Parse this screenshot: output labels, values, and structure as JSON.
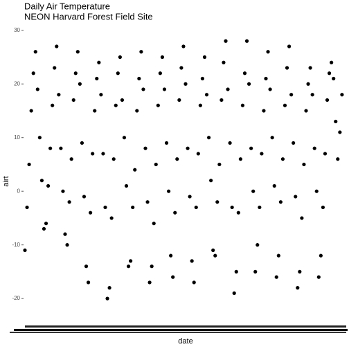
{
  "chart_data": {
    "type": "scatter",
    "title": "Daily Air Temperature",
    "subtitle": "NEON Harvard Forest Field Site",
    "x_label": "date",
    "y_label": "airt",
    "color": "#000000",
    "x": [
      0,
      0.1,
      0.2,
      0.3,
      0.4,
      0.5,
      0.6,
      0.7,
      0.8,
      0.9,
      1,
      1.1,
      1.2,
      1.3,
      1.4,
      1.5,
      1.6,
      1.7,
      1.8,
      1.9,
      2,
      2.1,
      2.2,
      2.3,
      2.4,
      2.5,
      2.6,
      2.7,
      2.8,
      2.9,
      3,
      3.1,
      3.2,
      3.3,
      3.4,
      3.5,
      3.6,
      3.7,
      3.8,
      3.9,
      4,
      4.1,
      4.2,
      4.3,
      4.4,
      4.5,
      4.6,
      4.7,
      4.8,
      4.9,
      5,
      5.1,
      5.2,
      5.3,
      5.4,
      5.5,
      5.6,
      5.7,
      5.8,
      5.9,
      6,
      6.1,
      6.2,
      6.3,
      6.4,
      6.5,
      6.6,
      6.7,
      6.8,
      6.9,
      7,
      7.1,
      7.2,
      7.3,
      7.4,
      7.5,
      7.6,
      7.7,
      7.8,
      7.9,
      8,
      8.1,
      8.2,
      8.3,
      8.4,
      8.5,
      8.6,
      8.7,
      8.8,
      8.9,
      9,
      9.1,
      9.2,
      9.3,
      9.4,
      9.5,
      9.6,
      9.7,
      9.8,
      9.9,
      10,
      10.1,
      10.2,
      10.3,
      10.4,
      10.5,
      10.6,
      10.7,
      10.8,
      10.9,
      11,
      11.1,
      11.2,
      11.3,
      11.4,
      11.5,
      11.6,
      11.7,
      11.8,
      11.9,
      12,
      12.1,
      12.2,
      12.3,
      12.4,
      12.5,
      12.6,
      12.7,
      12.8,
      12.9,
      13,
      13.1,
      13.2,
      13.3,
      13.4,
      13.5,
      13.6,
      13.7,
      13.8,
      13.9,
      14,
      14.1,
      14.2,
      14.3,
      14.4,
      14.5,
      14.6,
      14.7,
      14.8,
      14.9,
      15
    ],
    "values": [
      -11,
      -3,
      5,
      15,
      22,
      26,
      19,
      10,
      2,
      -7,
      -6,
      1,
      8,
      16,
      23,
      27,
      18,
      8,
      0,
      -8,
      -10,
      -2,
      6,
      17,
      22,
      26,
      20,
      9,
      -1,
      -14,
      -17,
      -4,
      7,
      15,
      21,
      24,
      18,
      7,
      -3,
      -20,
      -18,
      -5,
      6,
      16,
      22,
      25,
      17,
      10,
      1,
      -14,
      -13,
      -3,
      4,
      15,
      21,
      26,
      19,
      8,
      -2,
      -17,
      -14,
      -6,
      5,
      16,
      22,
      25,
      19,
      9,
      0,
      -12,
      -16,
      -4,
      6,
      17,
      23,
      27,
      20,
      8,
      -1,
      -13,
      -17,
      -3,
      7,
      16,
      21,
      25,
      18,
      10,
      2,
      -11,
      -12,
      -2,
      5,
      17,
      24,
      28,
      19,
      9,
      -3,
      -19,
      -15,
      -4,
      6,
      16,
      22,
      28,
      20,
      8,
      0,
      -15,
      -10,
      -3,
      7,
      15,
      21,
      26,
      19,
      10,
      1,
      -16,
      -12,
      -2,
      6,
      16,
      23,
      27,
      18,
      9,
      -1,
      -18,
      -15,
      -5,
      5,
      15,
      20,
      23,
      18,
      8,
      0,
      -16,
      -12,
      -3,
      7,
      17,
      22,
      24,
      21,
      13,
      6,
      11,
      18
    ],
    "xlim": [
      0,
      15.2
    ],
    "ylim": [
      -24.5,
      31
    ],
    "yticks": [
      -20,
      -10,
      0,
      10,
      20,
      30
    ]
  }
}
